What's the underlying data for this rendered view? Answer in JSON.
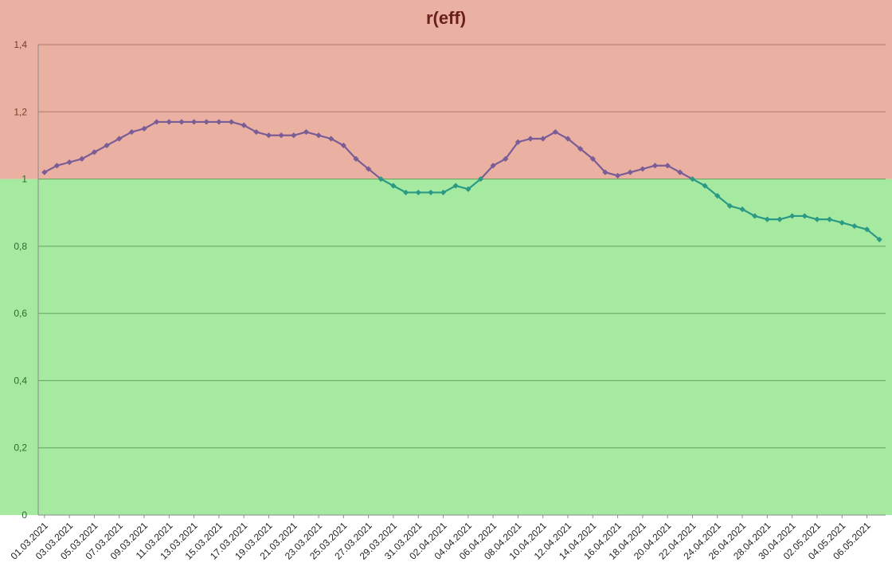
{
  "chart_data": {
    "type": "line",
    "title": "r(eff)",
    "xlabel": "",
    "ylabel": "",
    "ylim": [
      0,
      1.4
    ],
    "yticks": [
      "0",
      "0,2",
      "0,4",
      "0,6",
      "0,8",
      "1",
      "1,2",
      "1,4"
    ],
    "ytick_values": [
      0,
      0.2,
      0.4,
      0.6,
      0.8,
      1.0,
      1.2,
      1.4
    ],
    "grid": true,
    "threshold": 1.0,
    "colors": {
      "above_band": "#eab0a2",
      "below_band": "#a6eaa2",
      "line_above": "#7a5c96",
      "line_below": "#2a9a84",
      "tick_above": "#7a3a2a",
      "tick_below": "#2a6a2a"
    },
    "x": [
      "01.03.2021",
      "02.03.2021",
      "03.03.2021",
      "04.03.2021",
      "05.03.2021",
      "06.03.2021",
      "07.03.2021",
      "08.03.2021",
      "09.03.2021",
      "10.03.2021",
      "11.03.2021",
      "12.03.2021",
      "13.03.2021",
      "14.03.2021",
      "15.03.2021",
      "16.03.2021",
      "17.03.2021",
      "18.03.2021",
      "19.03.2021",
      "20.03.2021",
      "21.03.2021",
      "22.03.2021",
      "23.03.2021",
      "24.03.2021",
      "25.03.2021",
      "26.03.2021",
      "27.03.2021",
      "28.03.2021",
      "29.03.2021",
      "30.03.2021",
      "31.03.2021",
      "01.04.2021",
      "02.04.2021",
      "03.04.2021",
      "04.04.2021",
      "05.04.2021",
      "06.04.2021",
      "07.04.2021",
      "08.04.2021",
      "09.04.2021",
      "10.04.2021",
      "11.04.2021",
      "12.04.2021",
      "13.04.2021",
      "14.04.2021",
      "15.04.2021",
      "16.04.2021",
      "17.04.2021",
      "18.04.2021",
      "19.04.2021",
      "20.04.2021",
      "21.04.2021",
      "22.04.2021",
      "23.04.2021",
      "24.04.2021",
      "25.04.2021",
      "26.04.2021",
      "27.04.2021",
      "28.04.2021",
      "29.04.2021",
      "30.04.2021",
      "01.05.2021",
      "02.05.2021",
      "03.05.2021",
      "04.05.2021",
      "05.05.2021",
      "06.05.2021",
      "07.05.2021"
    ],
    "xtick_labels": [
      "01.03.2021",
      "03.03.2021",
      "05.03.2021",
      "07.03.2021",
      "09.03.2021",
      "11.03.2021",
      "13.03.2021",
      "15.03.2021",
      "17.03.2021",
      "19.03.2021",
      "21.03.2021",
      "23.03.2021",
      "25.03.2021",
      "27.03.2021",
      "29.03.2021",
      "31.03.2021",
      "02.04.2021",
      "04.04.2021",
      "06.04.2021",
      "08.04.2021",
      "10.04.2021",
      "12.04.2021",
      "14.04.2021",
      "16.04.2021",
      "18.04.2021",
      "20.04.2021",
      "22.04.2021",
      "24.04.2021",
      "26.04.2021",
      "28.04.2021",
      "30.04.2021",
      "02.05.2021",
      "04.05.2021",
      "06.05.2021"
    ],
    "series": [
      {
        "values": [
          1.02,
          1.04,
          1.05,
          1.06,
          1.08,
          1.1,
          1.12,
          1.14,
          1.15,
          1.17,
          1.17,
          1.17,
          1.17,
          1.17,
          1.17,
          1.17,
          1.16,
          1.14,
          1.13,
          1.13,
          1.13,
          1.14,
          1.13,
          1.12,
          1.1,
          1.06,
          1.03,
          1.0,
          0.98,
          0.96,
          0.96,
          0.96,
          0.96,
          0.98,
          0.97,
          1.0,
          1.04,
          1.06,
          1.11,
          1.12,
          1.12,
          1.14,
          1.12,
          1.09,
          1.06,
          1.02,
          1.01,
          1.02,
          1.03,
          1.04,
          1.04,
          1.02,
          1.0,
          0.98,
          0.95,
          0.92,
          0.91,
          0.89,
          0.88,
          0.88,
          0.89,
          0.89,
          0.88,
          0.88,
          0.87,
          0.86,
          0.85,
          0.82
        ]
      }
    ]
  }
}
